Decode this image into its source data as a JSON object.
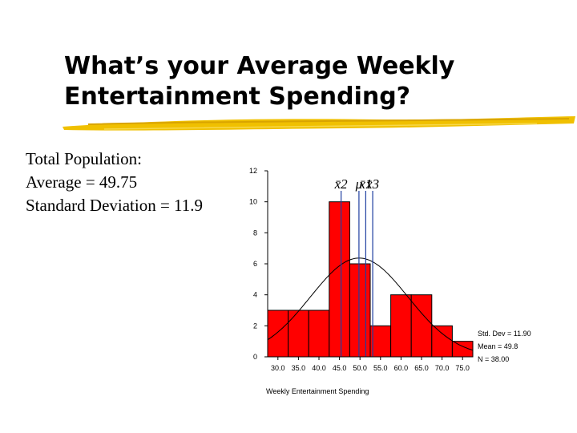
{
  "slide": {
    "title_line1": "What’s your Average Weekly",
    "title_line2": "Entertainment Spending?"
  },
  "stats": {
    "line1": "Total Population:",
    "line2": "Average = 49.75",
    "line3": "Standard Deviation = 11.9"
  },
  "colors": {
    "bar_fill": "#ff0000",
    "underline": "#f0c000",
    "mean_lines": "#1f3fa0"
  },
  "chart_data": {
    "type": "bar",
    "xlabel": "Weekly Entertainment  Spending",
    "ylabel": "",
    "ylim": [
      0,
      12
    ],
    "xlim": [
      27.5,
      77.5
    ],
    "bin_width": 5,
    "bin_centers": [
      30,
      35,
      40,
      45,
      50,
      55,
      60,
      65,
      70,
      75
    ],
    "values": [
      3,
      3,
      3,
      10,
      6,
      2,
      4,
      4,
      2,
      1
    ],
    "x_tick_labels": [
      "30.0",
      "35.0",
      "40.0",
      "45.0",
      "50.0",
      "55.0",
      "60.0",
      "65.0",
      "70.0",
      "75.0"
    ],
    "y_ticks": [
      0,
      2,
      4,
      6,
      8,
      10,
      12
    ],
    "normal_curve": {
      "mean": 49.8,
      "sd": 11.9
    },
    "stats_box": [
      "Std. Dev = 11.90",
      "Mean = 49.8",
      "N = 38.00"
    ],
    "markers": [
      {
        "label": "x̄2",
        "x": 45.4
      },
      {
        "label": "μ",
        "x": 49.75
      },
      {
        "label": "x̄1",
        "x": 51.4
      },
      {
        "label": "x̄3",
        "x": 53.1
      }
    ]
  }
}
